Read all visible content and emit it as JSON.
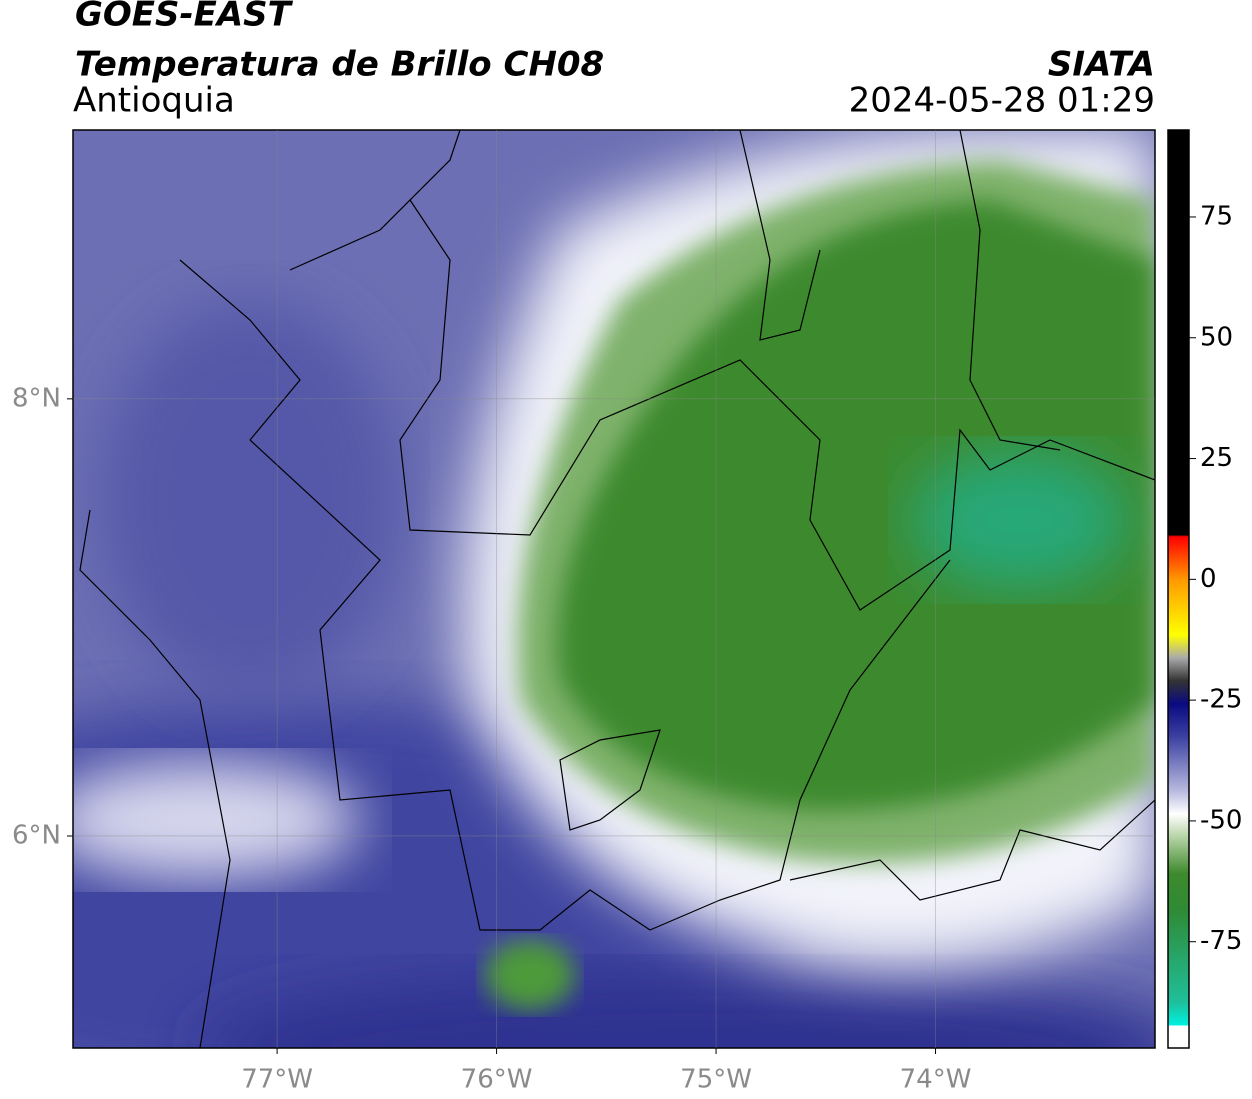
{
  "header": {
    "title": "GOES-EAST",
    "subtitle": "Temperatura de Brillo CH08",
    "region": "Antioquia",
    "source": "SIATA",
    "timestamp": "2024-05-28 01:29"
  },
  "map": {
    "xlim": [
      -77.93,
      -73.0
    ],
    "ylim": [
      5.03,
      9.23
    ],
    "xticks": [
      {
        "value": -77,
        "label": "77°W"
      },
      {
        "value": -76,
        "label": "76°W"
      },
      {
        "value": -75,
        "label": "75°W"
      },
      {
        "value": -74,
        "label": "74°W"
      }
    ],
    "yticks": [
      {
        "value": 8,
        "label": "8°N"
      },
      {
        "value": 6,
        "label": "6°N"
      }
    ],
    "grid": true
  },
  "colorbar": {
    "lim": [
      -97,
      93
    ],
    "ticks": [
      75,
      50,
      25,
      0,
      -25,
      -50,
      -75
    ]
  }
}
